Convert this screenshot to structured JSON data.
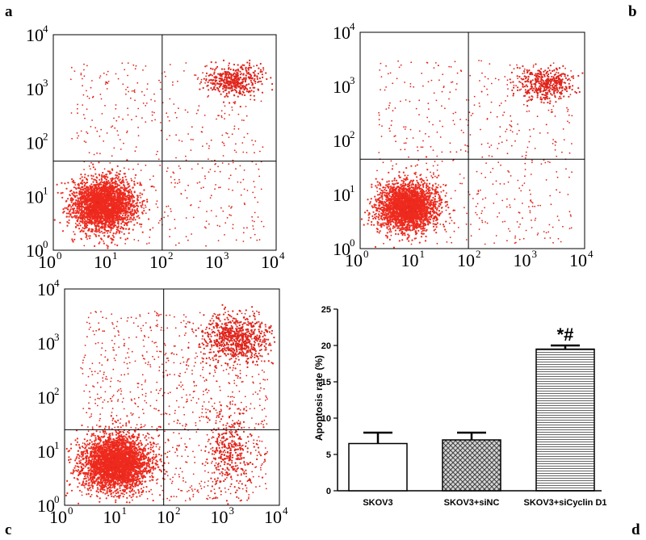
{
  "chart_data": [
    {
      "panel": "a",
      "type": "scatter",
      "title": "",
      "axis_scale": "log",
      "xlim": [
        1,
        10000
      ],
      "ylim": [
        1,
        10000
      ],
      "quadrant_gate": {
        "x": 90,
        "y": 45
      },
      "tick_base": "10",
      "tick_exponents": [
        "0",
        "1",
        "2",
        "3",
        "4"
      ],
      "populations": [
        {
          "name": "live",
          "center": [
            8,
            7
          ],
          "spread_decades": [
            0.28,
            0.24
          ],
          "count": 2600
        },
        {
          "name": "late",
          "center": [
            1800,
            1400
          ],
          "spread_decades": [
            0.25,
            0.14
          ],
          "count": 420
        },
        {
          "name": "diffuse",
          "range_x": [
            2,
            6000
          ],
          "range_y": [
            1.2,
            3000
          ],
          "count": 520
        }
      ]
    },
    {
      "panel": "b",
      "type": "scatter",
      "title": "",
      "axis_scale": "log",
      "xlim": [
        1,
        10000
      ],
      "ylim": [
        1,
        10000
      ],
      "quadrant_gate": {
        "x": 85,
        "y": 45
      },
      "tick_base": "10",
      "tick_exponents": [
        "0",
        "1",
        "2",
        "3",
        "4"
      ],
      "populations": [
        {
          "name": "live",
          "center": [
            7,
            6
          ],
          "spread_decades": [
            0.26,
            0.22
          ],
          "count": 2400
        },
        {
          "name": "late",
          "center": [
            2000,
            1100
          ],
          "spread_decades": [
            0.25,
            0.16
          ],
          "count": 420
        },
        {
          "name": "diffuse",
          "range_x": [
            2,
            6000
          ],
          "range_y": [
            1.2,
            3000
          ],
          "count": 540
        }
      ]
    },
    {
      "panel": "c",
      "type": "scatter",
      "title": "",
      "axis_scale": "log",
      "xlim": [
        1,
        10000
      ],
      "ylim": [
        1,
        10000
      ],
      "quadrant_gate": {
        "x": 70,
        "y": 25
      },
      "tick_base": "10",
      "tick_exponents": [
        "0",
        "1",
        "2",
        "3",
        "4"
      ],
      "populations": [
        {
          "name": "live",
          "center": [
            9,
            6
          ],
          "spread_decades": [
            0.32,
            0.26
          ],
          "count": 3000
        },
        {
          "name": "late",
          "center": [
            1500,
            1200
          ],
          "spread_decades": [
            0.3,
            0.22
          ],
          "count": 700
        },
        {
          "name": "early",
          "center": [
            1200,
            10
          ],
          "spread_decades": [
            0.22,
            0.4
          ],
          "count": 320
        },
        {
          "name": "diffuse",
          "range_x": [
            2,
            6000
          ],
          "range_y": [
            1.2,
            4000
          ],
          "count": 1000
        }
      ]
    },
    {
      "panel": "d",
      "type": "bar",
      "title": "",
      "xlabel": "",
      "ylabel": "Apoptosis rate (%)",
      "ylim": [
        0,
        25
      ],
      "yticks": [
        0,
        5,
        10,
        15,
        20,
        25
      ],
      "categories": [
        "SKOV3",
        "SKOV3+siNC",
        "SKOV3+siCyclin D1"
      ],
      "values": [
        6.5,
        7.0,
        19.5
      ],
      "errors": [
        1.5,
        1.0,
        0.5
      ],
      "fills": [
        "open",
        "crosshatch",
        "horizontal-lines"
      ],
      "annotations": [
        {
          "category": "SKOV3+siCyclin D1",
          "text": "*#"
        }
      ]
    }
  ],
  "colors": {
    "dots": "#e0241b",
    "dots_dense": "#ee2a1e",
    "axes": "#000000"
  }
}
